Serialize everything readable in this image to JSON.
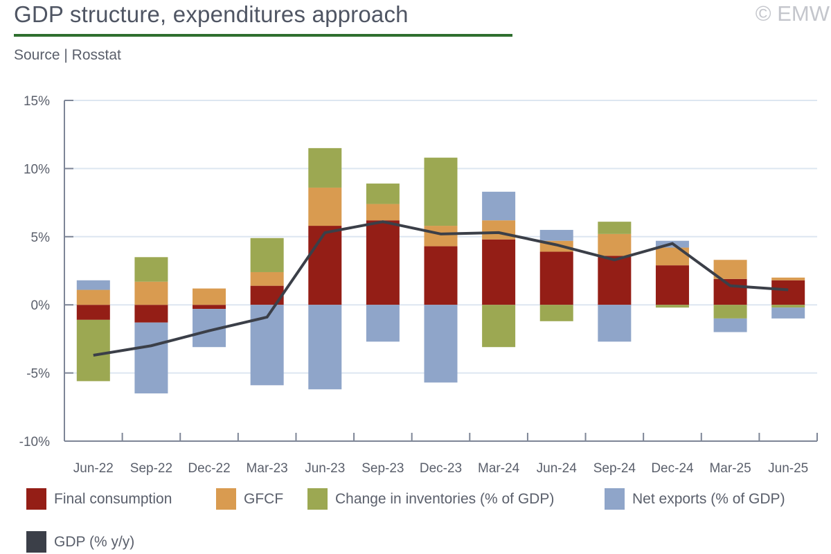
{
  "header": {
    "title": "GDP structure, expenditures approach",
    "source": "Source | Rosstat",
    "copyright": "© EMW"
  },
  "colors": {
    "final_consumption": "#941e16",
    "gfcf": "#d99b50",
    "inventories": "#9ca852",
    "net_exports": "#8fa5c9",
    "gdp": "#3b3f48",
    "axis": "#7d8596",
    "grid": "#dde6f1",
    "title_rule": "#2f6f2f"
  },
  "chart_data": {
    "type": "bar",
    "stacked": true,
    "title": "GDP structure, expenditures approach",
    "xlabel": "",
    "ylabel": "",
    "ylim": [
      -10,
      15
    ],
    "yticks": [
      -10,
      -5,
      0,
      5,
      10,
      15
    ],
    "ytick_labels": [
      "-10%",
      "-5%",
      "0%",
      "5%",
      "10%",
      "15%"
    ],
    "grid": true,
    "legend_position": "bottom",
    "categories": [
      "Jun-22",
      "Sep-22",
      "Dec-22",
      "Mar-23",
      "Jun-23",
      "Sep-23",
      "Dec-23",
      "Mar-24",
      "Jun-24",
      "Sep-24",
      "Dec-24",
      "Mar-25",
      "Jun-25"
    ],
    "series": [
      {
        "name": "Final consumption",
        "key": "final_consumption",
        "type": "bar",
        "values": [
          -1.1,
          -1.3,
          -0.3,
          1.4,
          5.8,
          6.2,
          4.3,
          4.8,
          3.9,
          3.6,
          2.9,
          1.9,
          1.8
        ]
      },
      {
        "name": "GFCF",
        "key": "gfcf",
        "type": "bar",
        "values": [
          1.1,
          1.7,
          1.2,
          1.0,
          2.8,
          1.2,
          1.5,
          1.4,
          0.8,
          1.6,
          1.3,
          1.4,
          0.2
        ]
      },
      {
        "name": "Change in inventories (% of GDP)",
        "key": "inventories",
        "type": "bar",
        "values": [
          -4.5,
          1.8,
          0.0,
          2.5,
          2.9,
          1.5,
          5.0,
          -3.1,
          -1.2,
          0.9,
          -0.2,
          -1.0,
          -0.2
        ]
      },
      {
        "name": "Net exports (% of GDP)",
        "key": "net_exports",
        "type": "bar",
        "values": [
          0.7,
          -5.2,
          -2.8,
          -5.9,
          -6.2,
          -2.7,
          -5.7,
          2.1,
          0.8,
          -2.7,
          0.5,
          -1.0,
          -0.8
        ]
      },
      {
        "name": "GDP (% y/y)",
        "key": "gdp",
        "type": "line",
        "values": [
          -3.7,
          -3.0,
          -1.9,
          -0.9,
          5.3,
          6.1,
          5.2,
          5.3,
          4.4,
          3.3,
          4.5,
          1.4,
          1.1
        ]
      }
    ]
  },
  "legend": [
    {
      "label": "Final consumption",
      "key": "final_consumption"
    },
    {
      "label": "GFCF",
      "key": "gfcf"
    },
    {
      "label": "Change in inventories (% of GDP)",
      "key": "inventories"
    },
    {
      "label": "Net exports (% of GDP)",
      "key": "net_exports"
    },
    {
      "label": "GDP (% y/y)",
      "key": "gdp"
    }
  ]
}
